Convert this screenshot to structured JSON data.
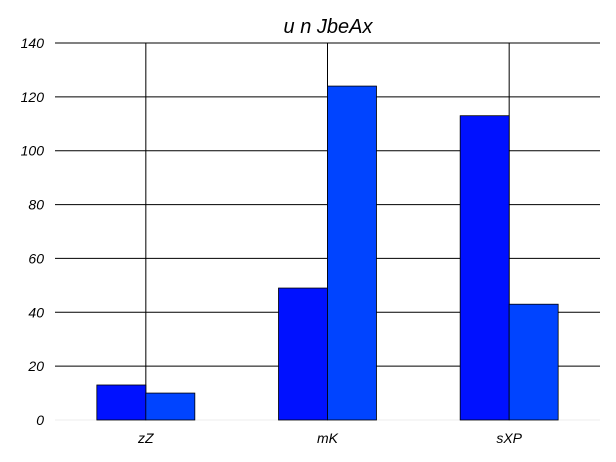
{
  "chart_data": {
    "type": "bar",
    "title": "u n JbeAx",
    "categories": [
      "zZ",
      "mK",
      "sXP"
    ],
    "series": [
      {
        "values": [
          13,
          49,
          113
        ],
        "color": "#0011ff"
      },
      {
        "values": [
          10,
          124,
          43
        ],
        "color": "#0044ff"
      }
    ],
    "ylim": [
      0,
      140
    ],
    "yticks": [
      0,
      20,
      40,
      60,
      80,
      100,
      120,
      140
    ],
    "xlabel": "",
    "ylabel": "",
    "grid": "horizontal and category lines",
    "background": "#ffffff"
  }
}
